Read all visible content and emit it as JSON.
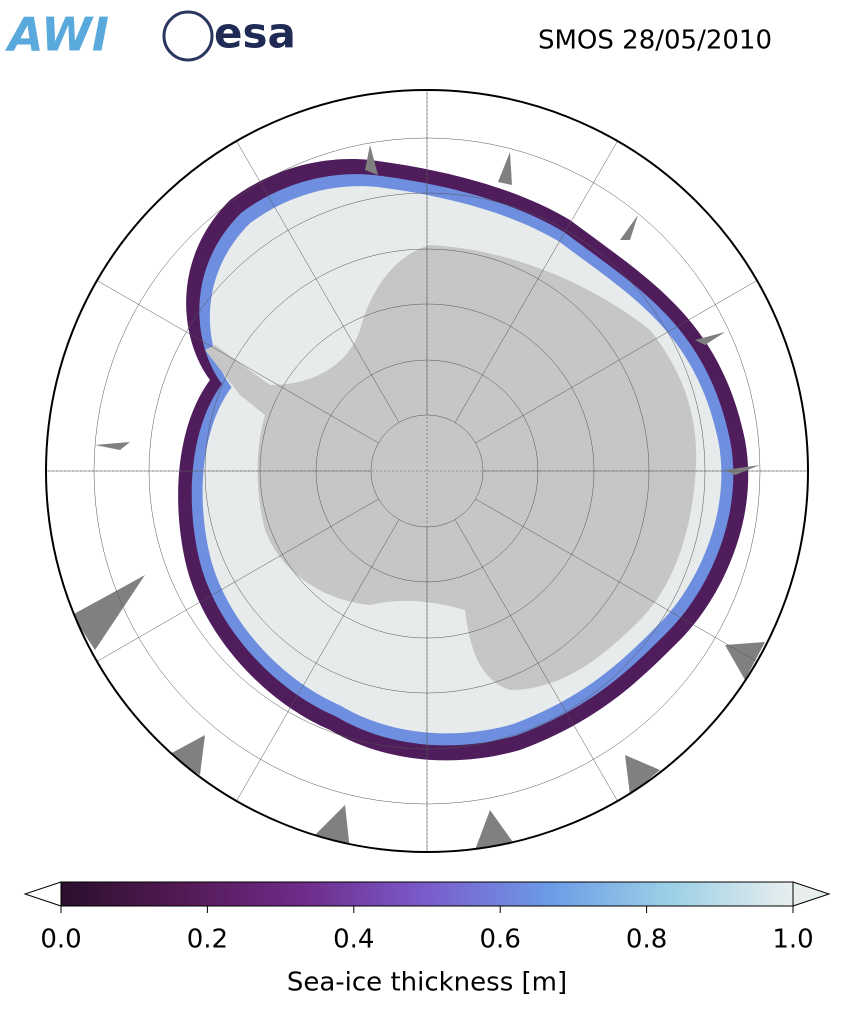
{
  "logos": [
    "AWI",
    "esa"
  ],
  "title": "SMOS 28/05/2010",
  "colorbar": {
    "label": "Sea-ice thickness [m]",
    "lim": [
      0,
      1
    ],
    "ticks": [
      {
        "value": 0,
        "label": "0.0"
      },
      {
        "value": 0.2,
        "label": "0.2"
      },
      {
        "value": 0.4,
        "label": "0.4"
      },
      {
        "value": 0.6,
        "label": "0.6"
      },
      {
        "value": 0.8,
        "label": "0.8"
      },
      {
        "value": 1,
        "label": "1.0"
      }
    ],
    "colors": [
      "#2a0f2c",
      "#541a55",
      "#6e2c8a",
      "#7a5ccc",
      "#6c9be6",
      "#9cd0e6",
      "#e8eeee"
    ]
  }
}
